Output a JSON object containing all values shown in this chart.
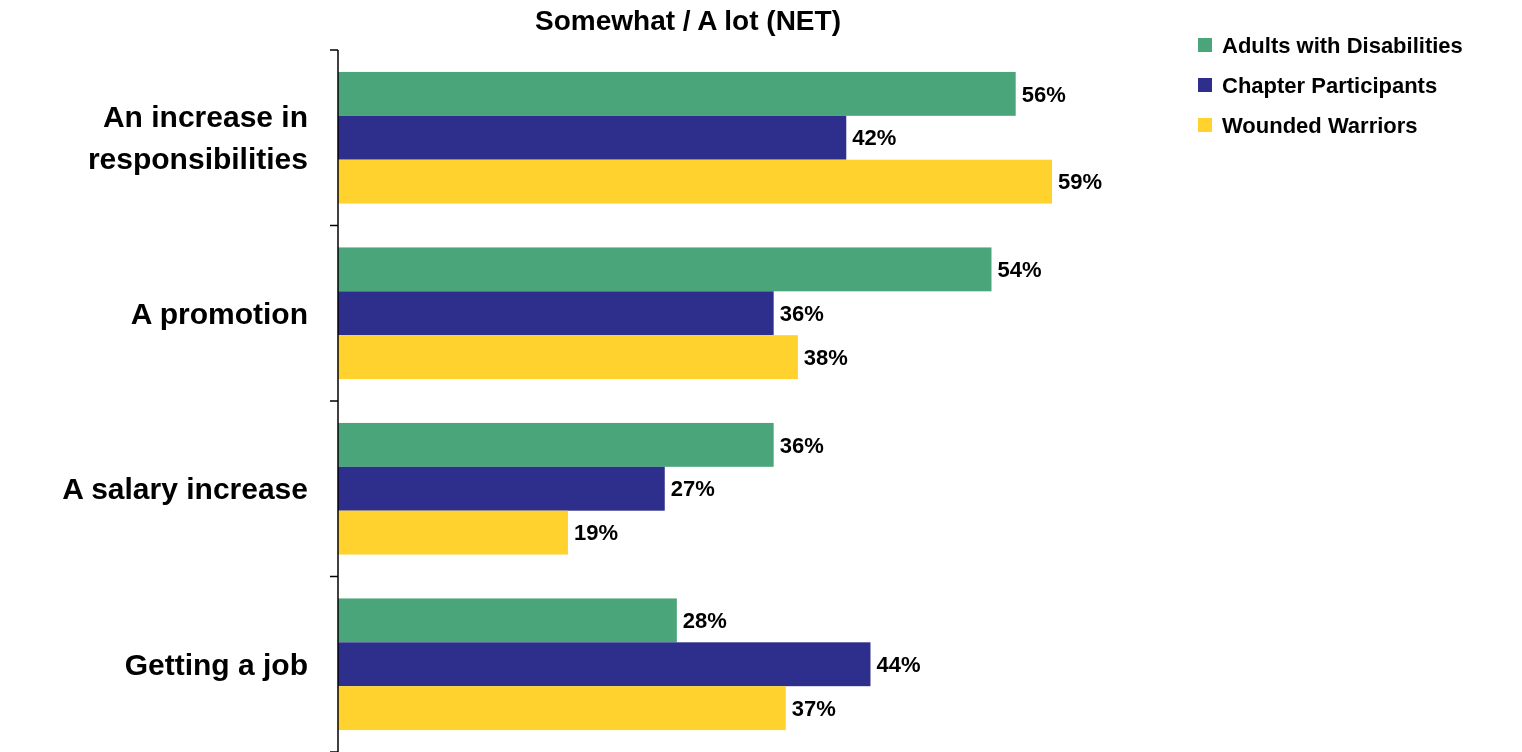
{
  "chart_data": {
    "type": "bar",
    "orientation": "horizontal",
    "title": "Somewhat / A lot (NET)",
    "categories": [
      "An increase in responsibilities",
      "A promotion",
      "A salary increase",
      "Getting a job"
    ],
    "series": [
      {
        "name": "Adults with Disabilities",
        "color": "#4aa67a",
        "values": [
          56,
          54,
          36,
          28
        ],
        "value_labels": [
          "56%",
          "54%",
          "36%",
          "28%"
        ]
      },
      {
        "name": "Chapter Participants",
        "color": "#2e2e8c",
        "values": [
          42,
          36,
          27,
          44
        ],
        "value_labels": [
          "42%",
          "36%",
          "27%",
          "44%"
        ]
      },
      {
        "name": "Wounded Warriors",
        "color": "#ffd22e",
        "values": [
          59,
          38,
          19,
          37
        ],
        "value_labels": [
          "59%",
          "38%",
          "19%",
          "37%"
        ]
      }
    ],
    "legend": "top right"
  }
}
